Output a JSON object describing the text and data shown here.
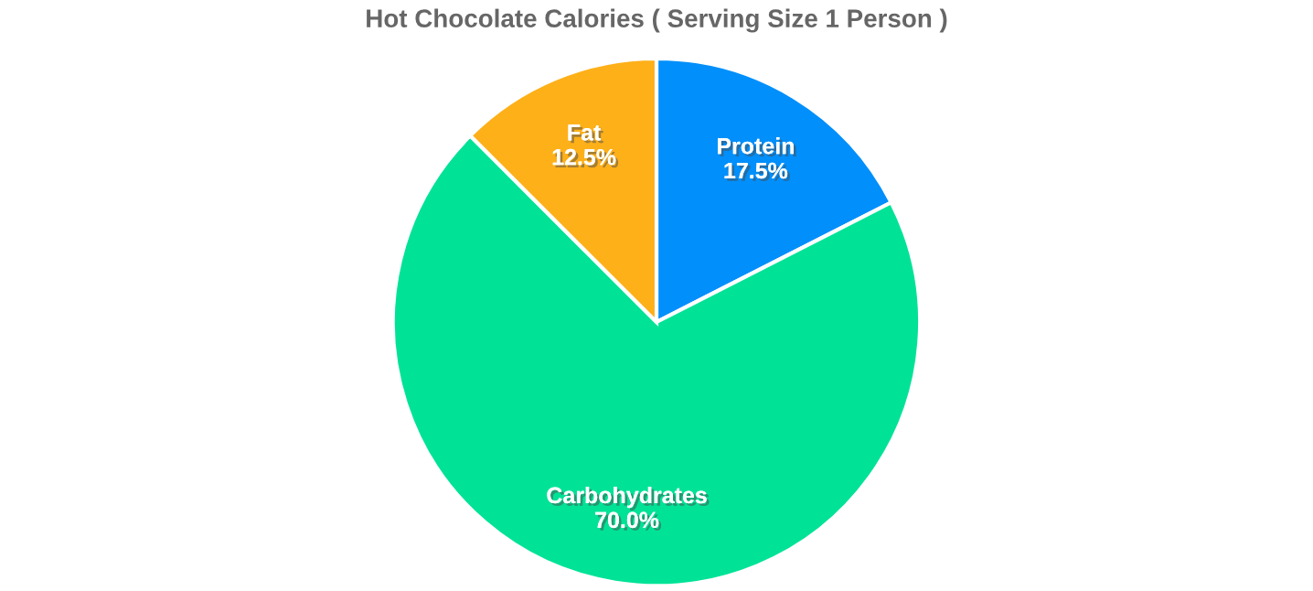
{
  "chart_data": {
    "type": "pie",
    "title": "Hot Chocolate Calories ( Serving Size 1 Person )",
    "categories": [
      "Protein",
      "Carbohydrates",
      "Fat"
    ],
    "values": [
      17.5,
      70.0,
      12.5
    ],
    "colors": [
      "#008ffb",
      "#00e396",
      "#feb019"
    ],
    "value_labels": [
      "17.5%",
      "70.0%",
      "12.5%"
    ],
    "legend": false
  }
}
